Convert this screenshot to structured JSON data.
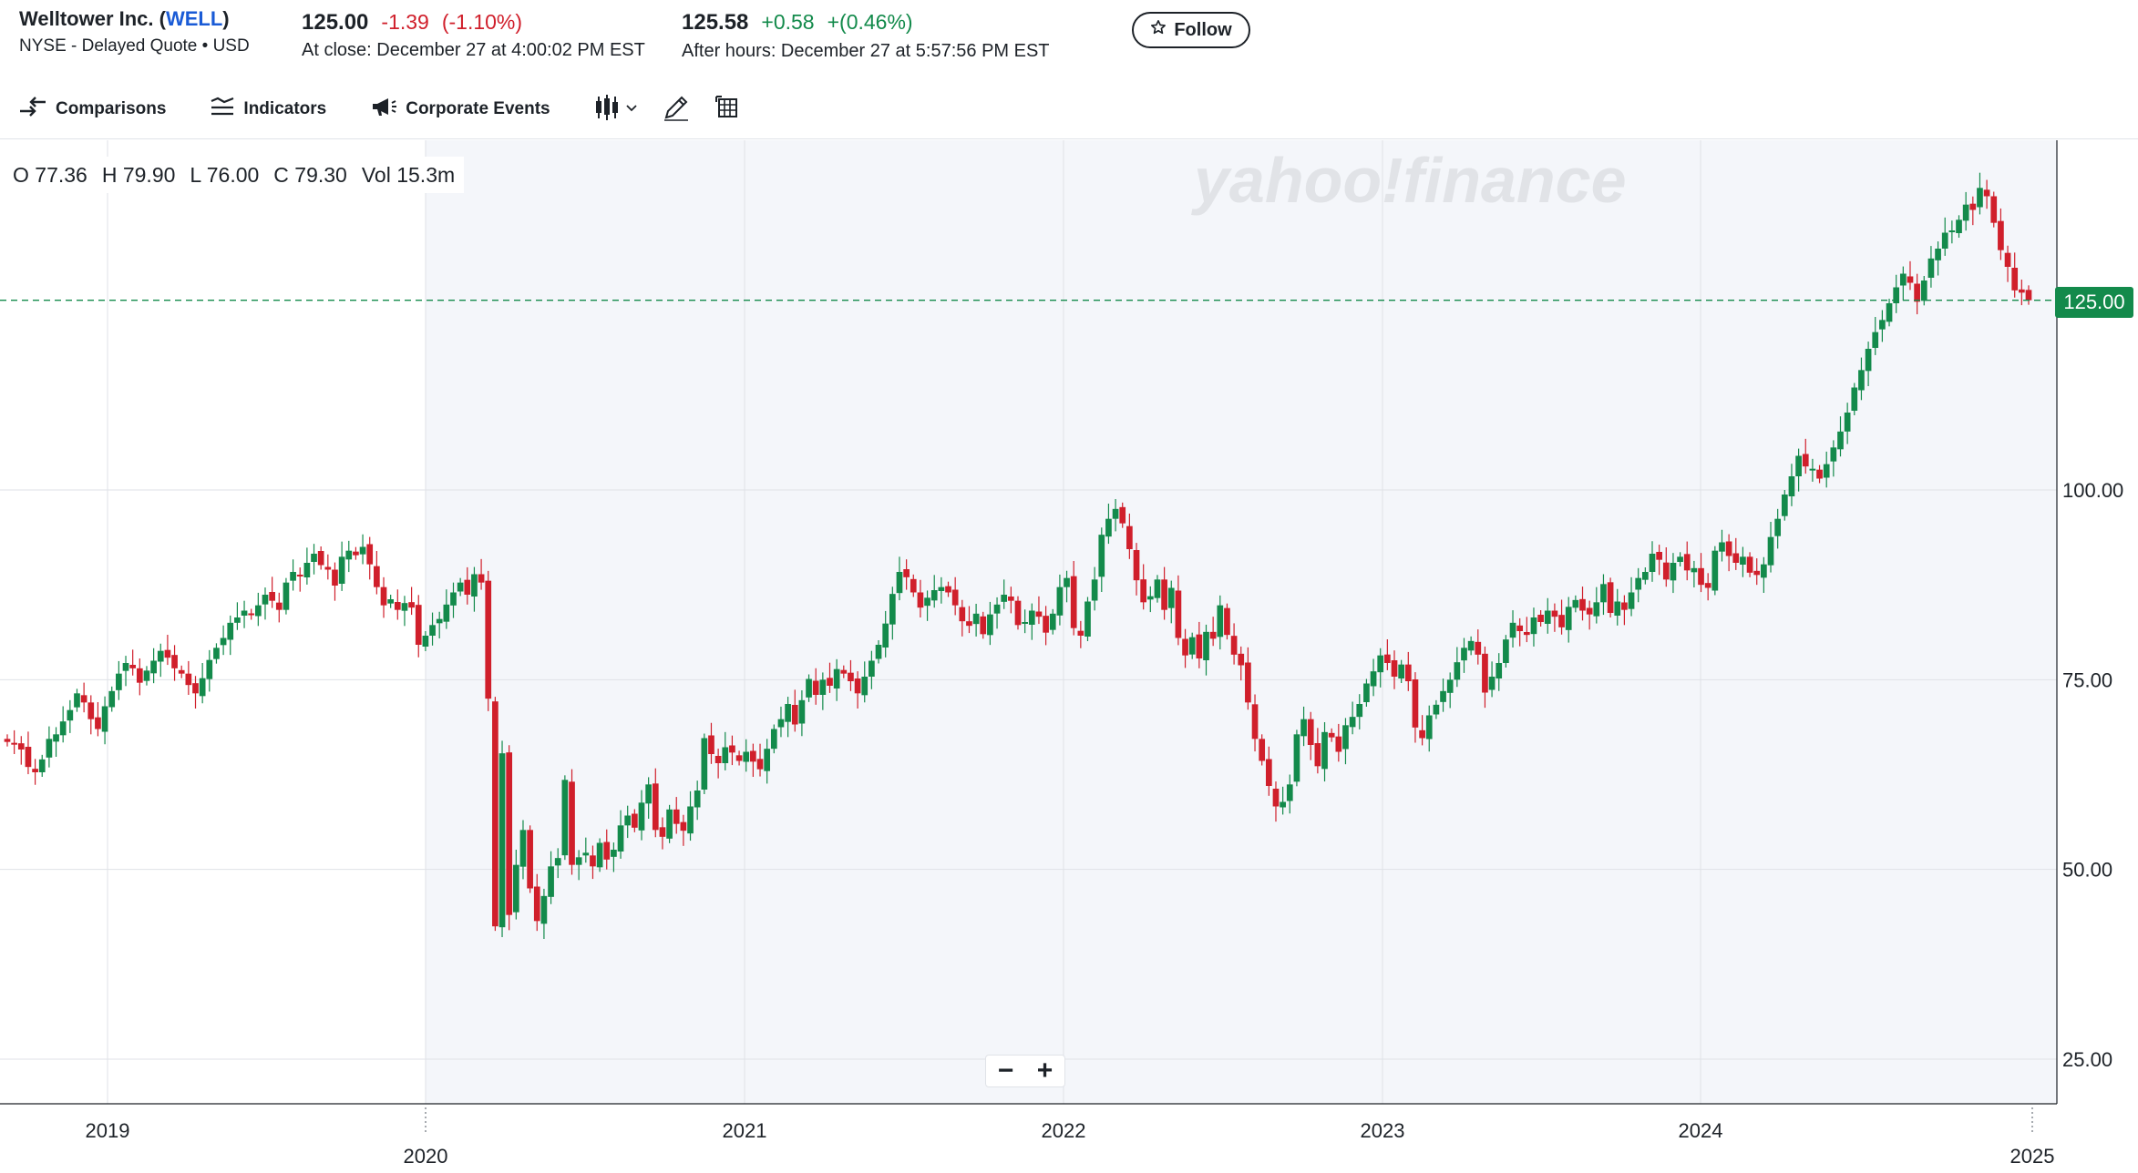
{
  "header": {
    "company_name": "Welltower Inc. (",
    "ticker": "WELL",
    "company_close": ")",
    "exchange": "NYSE - Delayed Quote • USD",
    "close_price": "125.00",
    "close_change": "-1.39",
    "close_change_pct": "(-1.10%)",
    "close_time": "At close: December 27 at 4:00:02 PM EST",
    "after_hours_price": "125.58",
    "after_hours_change": "+0.58",
    "after_hours_change_pct": "+(0.46%)",
    "after_hours_time": "After hours: December 27 at 5:57:56 PM EST",
    "follow_label": "Follow",
    "follow_icon": "star-outline-icon",
    "moon_icon": "moon-icon"
  },
  "toolbar": {
    "comparisons_label": "Comparisons",
    "indicators_label": "Indicators",
    "corporate_events_label": "Corporate Events",
    "chart_type_icon": "candlestick-icon",
    "draw_icon": "pencil-icon",
    "table_icon": "table-view-icon"
  },
  "ohlc": {
    "open": "O 77.36",
    "high": "H 79.90",
    "low": "L 76.00",
    "close": "C 79.30",
    "volume": "Vol 15.3m"
  },
  "watermark": "yahoo!finance",
  "last_price_tag": "125.00",
  "zoom": {
    "minus": "−",
    "plus": "+"
  },
  "colors": {
    "up": "#138a4b",
    "down": "#d01f2b",
    "plot_bg": "#f4f6fa",
    "grid": "#dfe2e7",
    "ticker_link": "#1a5bd6"
  },
  "chart_data": {
    "type": "candlestick",
    "title": "",
    "ylim": [
      20,
      146
    ],
    "y_ticks": [
      "25.00",
      "50.00",
      "75.00",
      "100.00"
    ],
    "x_tick_labels_upper": [
      "2019",
      "2021",
      "2022",
      "2023",
      "2024"
    ],
    "x_tick_labels_lower": [
      "2020",
      "2025"
    ],
    "last_price": 125.0,
    "first_visible_week": "2018-10-01",
    "interval": "1wk",
    "approx_weekly_closes": [
      66.8,
      66.5,
      65.8,
      63.5,
      62.8,
      64.5,
      67.2,
      67.8,
      69.5,
      71.0,
      73.2,
      72.0,
      69.8,
      68.5,
      71.5,
      73.5,
      75.8,
      77.2,
      76.5,
      74.6,
      76.2,
      77.5,
      78.8,
      77.9,
      76.5,
      75.8,
      74.3,
      73.2,
      75.2,
      77.6,
      79.2,
      80.5,
      82.5,
      83.2,
      84.1,
      83.5,
      84.8,
      86.2,
      85.4,
      84.2,
      87.8,
      89.2,
      88.6,
      90.4,
      91.6,
      90.1,
      89.5,
      87.4,
      91.2,
      92.0,
      91.4,
      92.5,
      90.2,
      87.2,
      84.8,
      85.6,
      84.2,
      85.1,
      84.5,
      79.6,
      80.8,
      82.2,
      83.0,
      84.9,
      86.5,
      87.8,
      86.2,
      88.9,
      87.8,
      72.5,
      42.5,
      65.3,
      44.0,
      50.6,
      55.2,
      47.5,
      43.2,
      46.5,
      50.4,
      51.5,
      61.8,
      50.6,
      51.6,
      52.2,
      50.4,
      53.5,
      51.3,
      52.6,
      55.8,
      57.1,
      55.5,
      58.8,
      61.2,
      55.2,
      54.3,
      57.9,
      56.0,
      55.1,
      58.3,
      60.4,
      67.3,
      65.2,
      64.0,
      66.1,
      65.4,
      64.3,
      65.5,
      64.2,
      63.2,
      65.9,
      68.5,
      69.8,
      71.8,
      69.1,
      72.3,
      75.1,
      73.0,
      75.0,
      74.2,
      76.4,
      75.8,
      74.8,
      73.2,
      75.4,
      77.5,
      79.6,
      82.4,
      86.3,
      89.2,
      88.5,
      86.5,
      84.5,
      85.8,
      86.8,
      87.2,
      86.5,
      84.8,
      82.7,
      82.1,
      83.7,
      81.0,
      83.6,
      84.9,
      86.2,
      85.4,
      82.2,
      82.6,
      84.1,
      83.3,
      81.2,
      83.7,
      87.2,
      88.4,
      81.8,
      80.8,
      85.3,
      88.2,
      94.1,
      96.2,
      97.5,
      95.6,
      92.2,
      88.1,
      85.2,
      86.0,
      88.2,
      84.2,
      87.1,
      80.5,
      78.2,
      80.6,
      77.8,
      81.3,
      80.4,
      84.8,
      80.9,
      78.3,
      76.9,
      72.0,
      67.2,
      64.3,
      61.0,
      58.3,
      58.9,
      61.2,
      67.8,
      69.8,
      66.4,
      63.6,
      68.1,
      67.4,
      65.5,
      69.0,
      70.1,
      71.8,
      74.5,
      76.1,
      78.2,
      77.2,
      75.4,
      77.0,
      74.8,
      68.7,
      67.3,
      70.3,
      71.7,
      73.5,
      75.0,
      77.3,
      79.2,
      80.1,
      78.3,
      73.3,
      75.4,
      77.2,
      80.3,
      82.5,
      81.4,
      80.9,
      83.2,
      82.6,
      84.1,
      83.3,
      81.9,
      84.6,
      85.5,
      84.1,
      83.6,
      85.2,
      87.6,
      83.8,
      85.3,
      84.2,
      86.5,
      88.4,
      89.2,
      91.6,
      90.8,
      88.2,
      90.4,
      91.2,
      89.4,
      89.7,
      87.5,
      87.1,
      92.0,
      93.1,
      91.3,
      90.4,
      91.2,
      89.1,
      88.8,
      90.2,
      93.8,
      96.2,
      99.4,
      101.8,
      104.5,
      103.1,
      102.8,
      101.5,
      103.4,
      105.6,
      107.7,
      110.2,
      113.5,
      115.8,
      118.6,
      120.8,
      122.4,
      124.6,
      126.7,
      128.5,
      127.3,
      124.8,
      127.6,
      130.5,
      131.8,
      133.9,
      134.2,
      135.6,
      137.6,
      136.9,
      139.8,
      138.7,
      135.2,
      131.6,
      129.4,
      126.3,
      126.0,
      125.0
    ]
  }
}
